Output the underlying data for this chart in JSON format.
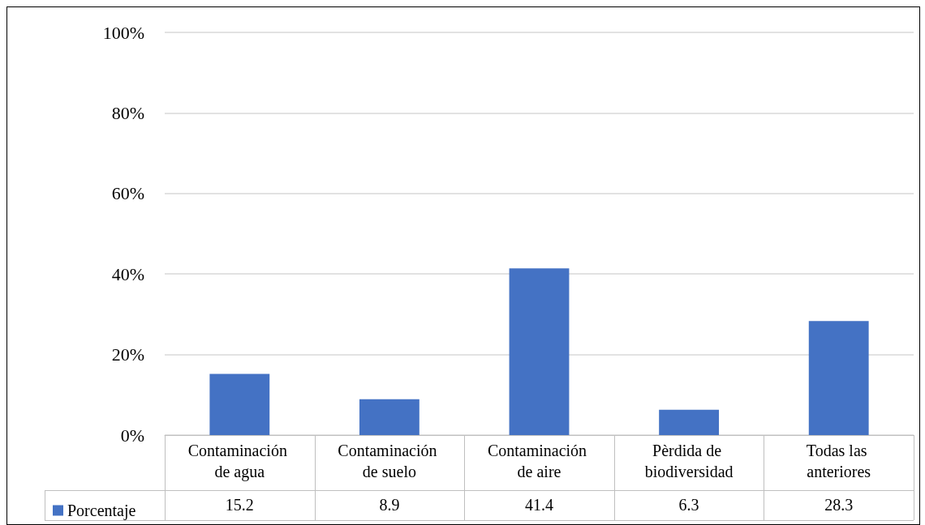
{
  "chart_data": {
    "type": "bar",
    "categories": [
      "Contaminación de agua",
      "Contaminación de suelo",
      "Contaminación de aire",
      "Pèrdida de biodiversidad",
      "Todas las anteriores"
    ],
    "series": [
      {
        "name": "Porcentaje",
        "color": "#4472c4",
        "values": [
          15.2,
          8.9,
          41.4,
          6.3,
          28.3
        ]
      }
    ],
    "ylim": [
      0,
      100
    ],
    "yticks": [
      {
        "value": 0,
        "label": "0%"
      },
      {
        "value": 20,
        "label": "20%"
      },
      {
        "value": 40,
        "label": "40%"
      },
      {
        "value": 60,
        "label": "60%"
      },
      {
        "value": 80,
        "label": "80%"
      },
      {
        "value": 100,
        "label": "100%"
      }
    ],
    "grid": "y",
    "legend": "bottom left",
    "data_labels": true
  }
}
